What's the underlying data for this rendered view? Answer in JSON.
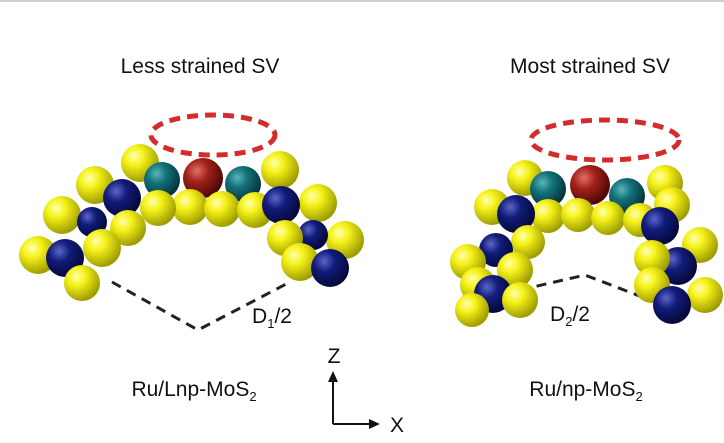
{
  "panels": [
    {
      "title": "Less strained SV",
      "distance_label_main": "D",
      "distance_label_sub": "1",
      "distance_label_tail": "/2",
      "material_main": "Ru/Lnp-MoS",
      "material_sub": "2"
    },
    {
      "title": "Most strained SV",
      "distance_label_main": "D",
      "distance_label_sub": "2",
      "distance_label_tail": "/2",
      "material_main": "Ru/np-MoS",
      "material_sub": "2"
    }
  ],
  "axes": {
    "z_label": "Z",
    "x_label": "X"
  },
  "colors": {
    "sulfur": "#f2ef14",
    "molybdenum": "#0d1670",
    "teal": "#0f6b73",
    "ruthenium": "#9c1e18",
    "vacancy_ring": "#d42c2c",
    "dashed_line": "#222222"
  }
}
